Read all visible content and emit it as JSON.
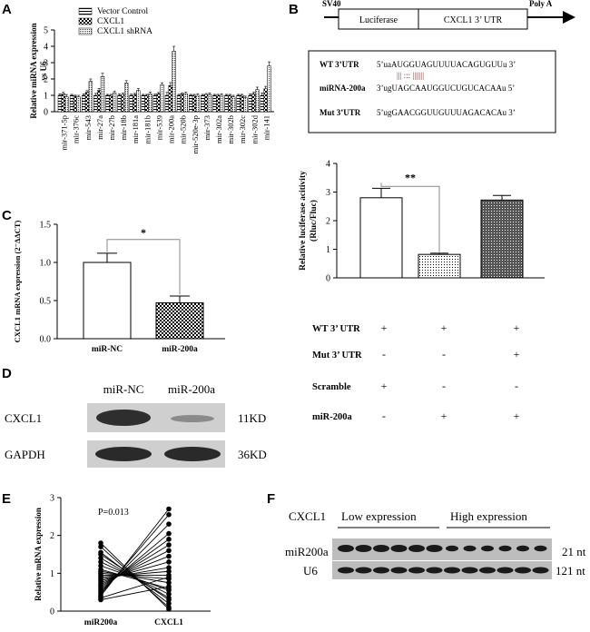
{
  "panels": {
    "A": "A",
    "B": "B",
    "C": "C",
    "D": "D",
    "E": "E",
    "F": "F"
  },
  "colors": {
    "black": "#000000",
    "white": "#ffffff",
    "blot_band": "#2a2a2a",
    "blot_bg": "#d8d8d8",
    "axis": "#000000"
  },
  "panel_a": {
    "chart_data": {
      "type": "bar",
      "ylabel": "Relative miRNA expression\nvs U6",
      "ylim": [
        0,
        5
      ],
      "yticks": [
        0,
        1,
        2,
        3,
        4,
        5
      ],
      "categories": [
        "mir-371-5p",
        "mir-376c",
        "mir-543",
        "mir-27a",
        "mir-27b",
        "mir-18b",
        "mir-181a",
        "mir-181b",
        "mir-539",
        "mir-200a",
        "mir-520b",
        "mir-520e-3p",
        "mir-373",
        "mir-302a",
        "mir-302b",
        "mir-302c",
        "mir-302d",
        "mir-141"
      ],
      "series": [
        {
          "name": "Vector Control",
          "values": [
            1.0,
            1.0,
            1.0,
            1.0,
            1.0,
            1.0,
            1.0,
            1.0,
            1.0,
            1.0,
            1.0,
            1.0,
            1.0,
            1.0,
            1.0,
            1.0,
            1.0,
            1.0
          ]
        },
        {
          "name": "CXCL1",
          "values": [
            1.1,
            0.95,
            1.2,
            1.3,
            1.0,
            1.05,
            1.05,
            1.0,
            1.1,
            1.6,
            1.1,
            1.0,
            1.05,
            1.0,
            1.0,
            1.0,
            1.1,
            1.4
          ]
        },
        {
          "name": "CXCL1 shRNA",
          "values": [
            0.9,
            0.9,
            1.85,
            2.15,
            1.15,
            1.75,
            1.3,
            1.1,
            1.65,
            3.7,
            1.1,
            1.0,
            1.05,
            1.0,
            0.9,
            0.85,
            1.35,
            2.8
          ]
        }
      ],
      "errors": [
        0.15,
        0.1,
        0.15,
        0.2,
        0.1,
        0.15,
        0.12,
        0.1,
        0.12,
        0.3,
        0.1,
        0.1,
        0.1,
        0.1,
        0.1,
        0.1,
        0.15,
        0.25
      ],
      "legend": "top-right"
    }
  },
  "panel_b": {
    "construct": {
      "promoter": "SV40",
      "box1": "Luciferase",
      "box2": "CXCL1 3’ UTR",
      "polya": "Poly A"
    },
    "alignment": {
      "wt_label": "WT 3’UTR",
      "wt_seq": "5’uaAUGGUAGUUUUACAGUGUUu 3’",
      "pairing": "|||  :::  |||||||",
      "mir_label": "miRNA-200a",
      "mir_seq": "3’ugUAGCAAUGGUCUGUCACAAu 5’",
      "mut_label": "Mut 3’UTR",
      "mut_seq": "5’ugGAACGGUUGUUUAGACACAu 3’"
    },
    "chart_data": {
      "type": "bar",
      "ylabel": "Relative luciferase acitivity\n(Rluc/Fluc)",
      "ylim": [
        0,
        4
      ],
      "yticks": [
        0,
        1,
        2,
        3,
        4
      ],
      "values": [
        2.8,
        0.82,
        2.72
      ],
      "errors": [
        0.33,
        0.04,
        0.16
      ],
      "significance": "**"
    },
    "conditions": [
      {
        "label": "WT 3’ UTR",
        "marks": [
          "+",
          "+",
          "+"
        ]
      },
      {
        "label": "Mut 3’ UTR",
        "marks": [
          "-",
          "-",
          "+"
        ]
      },
      {
        "label": "Scramble",
        "marks": [
          "+",
          "-",
          "-"
        ]
      },
      {
        "label": "miR-200a",
        "marks": [
          "-",
          "+",
          "+"
        ]
      }
    ]
  },
  "panel_c": {
    "chart_data": {
      "type": "bar",
      "ylabel": "CXCL1 mRNA expression (2⁻ΔΔCT)",
      "ylim": [
        0,
        1.5
      ],
      "yticks": [
        "0.0",
        "0.5",
        "1.0",
        "1.5"
      ],
      "categories": [
        "miR-NC",
        "miR-200a"
      ],
      "values": [
        1.0,
        0.47
      ],
      "errors": [
        0.12,
        0.09
      ],
      "significance": "*"
    }
  },
  "panel_d": {
    "lanes": [
      "miR-NC",
      "miR-200a"
    ],
    "rows": [
      {
        "protein": "CXCL1",
        "size": "11KD"
      },
      {
        "protein": "GAPDH",
        "size": "36KD"
      }
    ]
  },
  "panel_e": {
    "chart_data": {
      "type": "scatter",
      "ylabel": "Relative mRNA expression",
      "ylim": [
        0,
        3
      ],
      "yticks": [
        0,
        1,
        2,
        3
      ],
      "categories": [
        "miR200a",
        "CXCL1"
      ],
      "annotation": "P=0.013",
      "pairs": [
        [
          1.8,
          0.05
        ],
        [
          1.7,
          0.1
        ],
        [
          1.55,
          0.2
        ],
        [
          1.5,
          0.3
        ],
        [
          1.4,
          0.35
        ],
        [
          1.3,
          0.45
        ],
        [
          1.2,
          0.55
        ],
        [
          1.1,
          0.6
        ],
        [
          1.05,
          0.75
        ],
        [
          1.0,
          0.85
        ],
        [
          0.95,
          0.95
        ],
        [
          0.9,
          1.05
        ],
        [
          0.85,
          1.15
        ],
        [
          0.8,
          1.3
        ],
        [
          0.75,
          1.45
        ],
        [
          0.7,
          1.6
        ],
        [
          0.65,
          1.75
        ],
        [
          0.6,
          1.9
        ],
        [
          0.55,
          2.05
        ],
        [
          0.5,
          2.3
        ],
        [
          0.45,
          2.55
        ],
        [
          0.4,
          2.7
        ],
        [
          0.35,
          0.9
        ],
        [
          0.3,
          0.65
        ]
      ]
    }
  },
  "panel_f": {
    "header_label": "CXCL1",
    "low_label": "Low expression",
    "high_label": "High expression",
    "rows": [
      {
        "label": "miR200a",
        "size": "21 nt"
      },
      {
        "label": "U6",
        "size": "121 nt"
      }
    ]
  }
}
